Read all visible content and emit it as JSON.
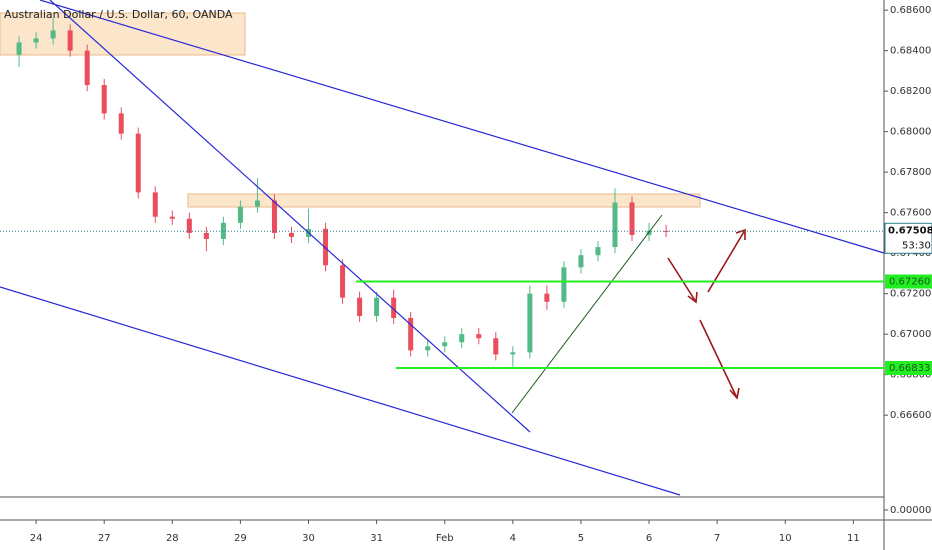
{
  "chart_data": {
    "type": "candlestick",
    "title": "Australian Dollar / U.S. Dollar, 60, OANDA",
    "x": [
      -0.25,
      0,
      0.25,
      0.5,
      0.75,
      1,
      1.25,
      1.5,
      1.75,
      2,
      2.25,
      2.5,
      2.75,
      3,
      3.25,
      3.5,
      3.75,
      4,
      4.25,
      4.5,
      4.75,
      5,
      5.25,
      5.5,
      5.75,
      6,
      6.25,
      6.5,
      6.75,
      7,
      7.25,
      7.5,
      7.75,
      8,
      8.25,
      8.5,
      8.75,
      9,
      9.25
    ],
    "open": [
      0.6838,
      0.6844,
      0.6846,
      0.685,
      0.684,
      0.6823,
      0.6809,
      0.6799,
      0.677,
      0.6758,
      0.6757,
      0.675,
      0.6747,
      0.6755,
      0.6763,
      0.6766,
      0.675,
      0.6748,
      0.6752,
      0.6734,
      0.6718,
      0.6709,
      0.6718,
      0.6708,
      0.6692,
      0.6694,
      0.6696,
      0.67,
      0.6698,
      0.669,
      0.6691,
      0.672,
      0.6716,
      0.6733,
      0.6739,
      0.6743,
      0.6765,
      0.6749,
      0.6751
    ],
    "high": [
      0.6847,
      0.6849,
      0.6856,
      0.6853,
      0.6843,
      0.6826,
      0.6812,
      0.6802,
      0.6773,
      0.6761,
      0.676,
      0.6753,
      0.6758,
      0.6766,
      0.6777,
      0.6769,
      0.6753,
      0.6762,
      0.6755,
      0.6737,
      0.6721,
      0.6721,
      0.6722,
      0.6711,
      0.6697,
      0.6699,
      0.6703,
      0.6703,
      0.6701,
      0.6694,
      0.6724,
      0.6724,
      0.6736,
      0.6742,
      0.6746,
      0.6772,
      0.6768,
      0.6755,
      0.6754
    ],
    "low": [
      0.6832,
      0.6841,
      0.6843,
      0.6837,
      0.682,
      0.6806,
      0.6796,
      0.6767,
      0.6755,
      0.6754,
      0.6747,
      0.6741,
      0.6744,
      0.6752,
      0.676,
      0.6747,
      0.6745,
      0.6745,
      0.6731,
      0.6715,
      0.6706,
      0.6706,
      0.6705,
      0.6689,
      0.6689,
      0.6691,
      0.6693,
      0.6695,
      0.6687,
      0.6684,
      0.6688,
      0.6712,
      0.6713,
      0.673,
      0.6736,
      0.674,
      0.6746,
      0.6746,
      0.6748
    ],
    "close": [
      0.6844,
      0.6846,
      0.685,
      0.684,
      0.6823,
      0.6809,
      0.6799,
      0.677,
      0.6758,
      0.6757,
      0.675,
      0.6747,
      0.6755,
      0.6763,
      0.6766,
      0.675,
      0.6748,
      0.6752,
      0.6734,
      0.6718,
      0.6709,
      0.6718,
      0.6708,
      0.6692,
      0.6694,
      0.6696,
      0.67,
      0.6698,
      0.669,
      0.6691,
      0.672,
      0.6716,
      0.6733,
      0.6739,
      0.6743,
      0.6765,
      0.6749,
      0.6751,
      0.67508
    ],
    "up_color": "#53b987",
    "down_color": "#eb4d5c",
    "xlim": [
      -0.53,
      12.45
    ],
    "xticks": [
      {
        "value": 0,
        "label": "24"
      },
      {
        "value": 1,
        "label": "27"
      },
      {
        "value": 2,
        "label": "28"
      },
      {
        "value": 3,
        "label": "29"
      },
      {
        "value": 4,
        "label": "30"
      },
      {
        "value": 5,
        "label": "31"
      },
      {
        "value": 6,
        "label": "Feb"
      },
      {
        "value": 7,
        "label": "4"
      },
      {
        "value": 8,
        "label": "5"
      },
      {
        "value": 9,
        "label": "6"
      },
      {
        "value": 10,
        "label": "7"
      },
      {
        "value": 11,
        "label": "10"
      },
      {
        "value": 12,
        "label": "11"
      }
    ],
    "ylim": [
      0.66196,
      0.6865
    ],
    "yticks": [
      {
        "value": 0.686,
        "label": "0.68600"
      },
      {
        "value": 0.684,
        "label": "0.68400"
      },
      {
        "value": 0.682,
        "label": "0.68200"
      },
      {
        "value": 0.68,
        "label": "0.68000"
      },
      {
        "value": 0.678,
        "label": "0.67800"
      },
      {
        "value": 0.676,
        "label": "0.67600"
      },
      {
        "value": 0.674,
        "label": "0.67400"
      },
      {
        "value": 0.672,
        "label": "0.67200"
      },
      {
        "value": 0.67,
        "label": "0.67000"
      },
      {
        "value": 0.668,
        "label": "0.66800"
      },
      {
        "value": 0.666,
        "label": "0.66600"
      }
    ],
    "levels": [
      {
        "value": 0.6726,
        "label": "0.67260"
      },
      0.66833
    ],
    "level_color": "#22ee22",
    "last_price": 0.67508,
    "countdown": "53:30",
    "lower_pane": {
      "yticks": [
        {
          "value": 0,
          "label": "0.00000"
        }
      ]
    }
  }
}
